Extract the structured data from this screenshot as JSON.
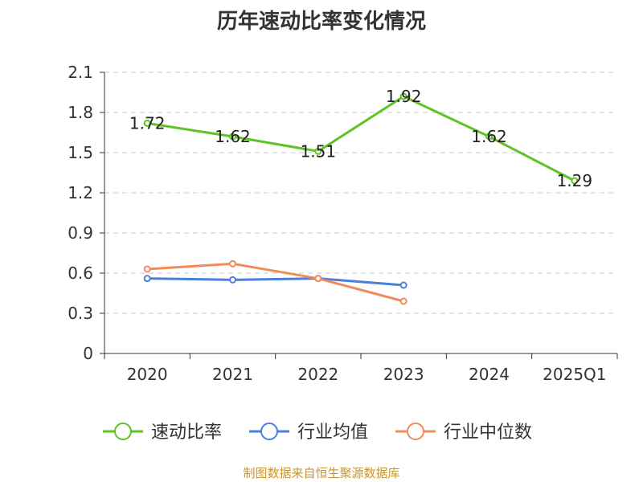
{
  "chart_data": {
    "type": "line",
    "title": "历年速动比率变化情况",
    "categories": [
      "2020",
      "2021",
      "2022",
      "2023",
      "2024",
      "2025Q1"
    ],
    "ylim": [
      0,
      2.1
    ],
    "yticks": [
      "0",
      "0.3",
      "0.6",
      "0.9",
      "1.2",
      "1.5",
      "1.8",
      "2.1"
    ],
    "grid": true,
    "legend_position": "bottom",
    "series": [
      {
        "name": "速动比率",
        "color": "#5fc423",
        "values": [
          1.72,
          1.62,
          1.51,
          1.92,
          1.62,
          1.29
        ],
        "labels": [
          "1.72",
          "1.62",
          "1.51",
          "1.92",
          "1.62",
          "1.29"
        ]
      },
      {
        "name": "行业均值",
        "color": "#4a7fdc",
        "values": [
          0.56,
          0.55,
          0.56,
          0.51,
          null,
          null
        ]
      },
      {
        "name": "行业中位数",
        "color": "#f08c5a",
        "values": [
          0.63,
          0.67,
          0.56,
          0.39,
          null,
          null
        ]
      }
    ]
  },
  "footer": {
    "source": "制图数据来自恒生聚源数据库"
  }
}
